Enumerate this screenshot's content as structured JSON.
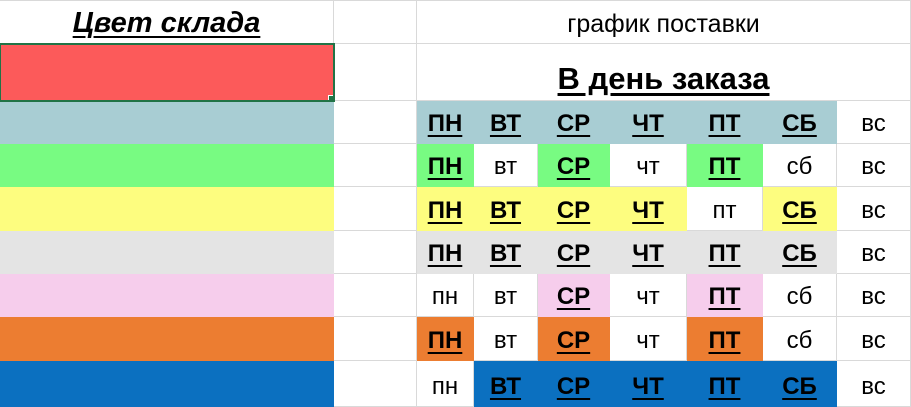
{
  "title_row": {
    "warehouse_color": "Цвет склада",
    "delivery_schedule": "график поставки"
  },
  "selected_row": {
    "label": "В день заказа",
    "color": "#FC5A5A"
  },
  "colors": {
    "red": "#FC5A5A",
    "teal": "#A8CDD3",
    "green": "#78FB82",
    "yellow": "#FDFD7F",
    "gray": "#E4E4E4",
    "pink": "#F6CDEC",
    "orange": "#EC7D31",
    "blue": "#0B70C0",
    "gridline": "#D9D9D9",
    "selection_border": "#217346"
  },
  "rows": [
    {
      "name": "teal",
      "color": "#A8CDD3",
      "days": [
        {
          "key": "mon",
          "label": "ПН",
          "active": true
        },
        {
          "key": "tue",
          "label": "ВТ",
          "active": true
        },
        {
          "key": "wed",
          "label": "СР",
          "active": true
        },
        {
          "key": "thu",
          "label": "ЧТ",
          "active": true
        },
        {
          "key": "fri",
          "label": "ПТ",
          "active": true
        },
        {
          "key": "sat",
          "label": "СБ",
          "active": true
        },
        {
          "key": "sun",
          "label": "вс",
          "active": false
        }
      ]
    },
    {
      "name": "green",
      "color": "#78FB82",
      "days": [
        {
          "key": "mon",
          "label": "ПН",
          "active": true
        },
        {
          "key": "tue",
          "label": "вт",
          "active": false
        },
        {
          "key": "wed",
          "label": "СР",
          "active": true
        },
        {
          "key": "thu",
          "label": "чт",
          "active": false
        },
        {
          "key": "fri",
          "label": "ПТ",
          "active": true
        },
        {
          "key": "sat",
          "label": "сб",
          "active": false
        },
        {
          "key": "sun",
          "label": "вс",
          "active": false
        }
      ]
    },
    {
      "name": "yellow",
      "color": "#FDFD7F",
      "days": [
        {
          "key": "mon",
          "label": "ПН",
          "active": true
        },
        {
          "key": "tue",
          "label": "ВТ",
          "active": true
        },
        {
          "key": "wed",
          "label": "СР",
          "active": true
        },
        {
          "key": "thu",
          "label": "ЧТ",
          "active": true
        },
        {
          "key": "fri",
          "label": "пт",
          "active": false
        },
        {
          "key": "sat",
          "label": "СБ",
          "active": true
        },
        {
          "key": "sun",
          "label": "вс",
          "active": false
        }
      ]
    },
    {
      "name": "gray",
      "color": "#E4E4E4",
      "days": [
        {
          "key": "mon",
          "label": "ПН",
          "active": true
        },
        {
          "key": "tue",
          "label": "ВТ",
          "active": true
        },
        {
          "key": "wed",
          "label": "СР",
          "active": true
        },
        {
          "key": "thu",
          "label": "ЧТ",
          "active": true
        },
        {
          "key": "fri",
          "label": "ПТ",
          "active": true
        },
        {
          "key": "sat",
          "label": "СБ",
          "active": true
        },
        {
          "key": "sun",
          "label": "вс",
          "active": false
        }
      ]
    },
    {
      "name": "pink",
      "color": "#F6CDEC",
      "days": [
        {
          "key": "mon",
          "label": "пн",
          "active": false
        },
        {
          "key": "tue",
          "label": "вт",
          "active": false
        },
        {
          "key": "wed",
          "label": "СР",
          "active": true
        },
        {
          "key": "thu",
          "label": "чт",
          "active": false
        },
        {
          "key": "fri",
          "label": "ПТ",
          "active": true
        },
        {
          "key": "sat",
          "label": "сб",
          "active": false
        },
        {
          "key": "sun",
          "label": "вс",
          "active": false
        }
      ]
    },
    {
      "name": "orange",
      "color": "#EC7D31",
      "days": [
        {
          "key": "mon",
          "label": "ПН",
          "active": true
        },
        {
          "key": "tue",
          "label": "вт",
          "active": false
        },
        {
          "key": "wed",
          "label": "СР",
          "active": true
        },
        {
          "key": "thu",
          "label": "чт",
          "active": false
        },
        {
          "key": "fri",
          "label": "ПТ",
          "active": true
        },
        {
          "key": "sat",
          "label": "сб",
          "active": false
        },
        {
          "key": "sun",
          "label": "вс",
          "active": false
        }
      ]
    },
    {
      "name": "blue",
      "color": "#0B70C0",
      "days": [
        {
          "key": "mon",
          "label": "пн",
          "active": false
        },
        {
          "key": "tue",
          "label": "ВТ",
          "active": true
        },
        {
          "key": "wed",
          "label": "СР",
          "active": true
        },
        {
          "key": "thu",
          "label": "ЧТ",
          "active": true
        },
        {
          "key": "fri",
          "label": "ПТ",
          "active": true
        },
        {
          "key": "sat",
          "label": "СБ",
          "active": true
        },
        {
          "key": "sun",
          "label": "вс",
          "active": false
        }
      ]
    }
  ]
}
